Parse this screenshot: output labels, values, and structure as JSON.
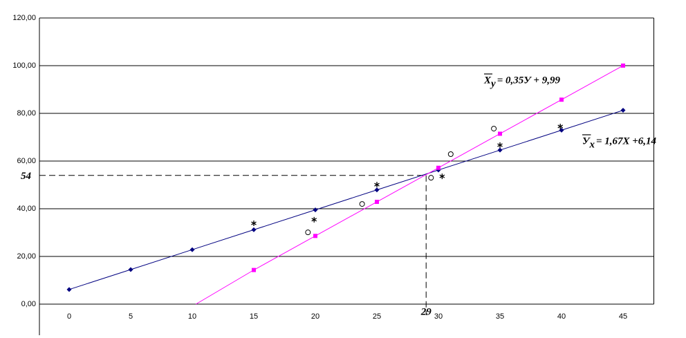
{
  "chart_data": {
    "type": "line",
    "xlim": [
      -2.5,
      47.5
    ],
    "ylim": [
      0,
      120
    ],
    "xticks": [
      0,
      5,
      10,
      15,
      20,
      25,
      30,
      35,
      40,
      45
    ],
    "yticks": [
      {
        "value": 0,
        "label": "0,00"
      },
      {
        "value": 20,
        "label": "20,00"
      },
      {
        "value": 40,
        "label": "40,00"
      },
      {
        "value": 60,
        "label": "60,00"
      },
      {
        "value": 80,
        "label": "80,00"
      },
      {
        "value": 100,
        "label": "100,00"
      },
      {
        "value": 120,
        "label": "120,00"
      }
    ],
    "grid": true,
    "series": [
      {
        "color": "#000080",
        "marker": "diamond",
        "x": [
          0,
          5,
          10,
          15,
          20,
          25,
          30,
          35,
          40,
          45
        ],
        "values": [
          6.14,
          14.49,
          22.84,
          31.19,
          39.54,
          47.89,
          56.24,
          64.59,
          72.94,
          81.29
        ]
      },
      {
        "color": "#ff00ff",
        "marker": "square",
        "x": [
          10.3,
          15,
          20,
          25,
          30,
          35,
          40,
          45
        ],
        "values": [
          0,
          14.31,
          28.6,
          42.89,
          57.17,
          71.46,
          85.74,
          100.03
        ]
      }
    ],
    "observations": [
      {
        "marker": "circle",
        "x": [
          19.4,
          23.8,
          29.4,
          31,
          34.5
        ],
        "values": [
          30.1,
          42,
          53,
          62.9,
          73.6
        ]
      },
      {
        "marker": "asterisk",
        "x": [
          15,
          19.9,
          25,
          30.3,
          35,
          39.9
        ],
        "values": [
          33.9,
          35.4,
          50.1,
          53.6,
          66.7,
          74.5
        ]
      }
    ],
    "reference": {
      "x": 29,
      "y": 54
    },
    "equations": [
      {
        "symbol": "X",
        "subscript": "y",
        "text": "= 0,35У + 9,99"
      },
      {
        "symbol": "У",
        "subscript": "x",
        "text": "= 1,67X +6,14"
      }
    ]
  }
}
